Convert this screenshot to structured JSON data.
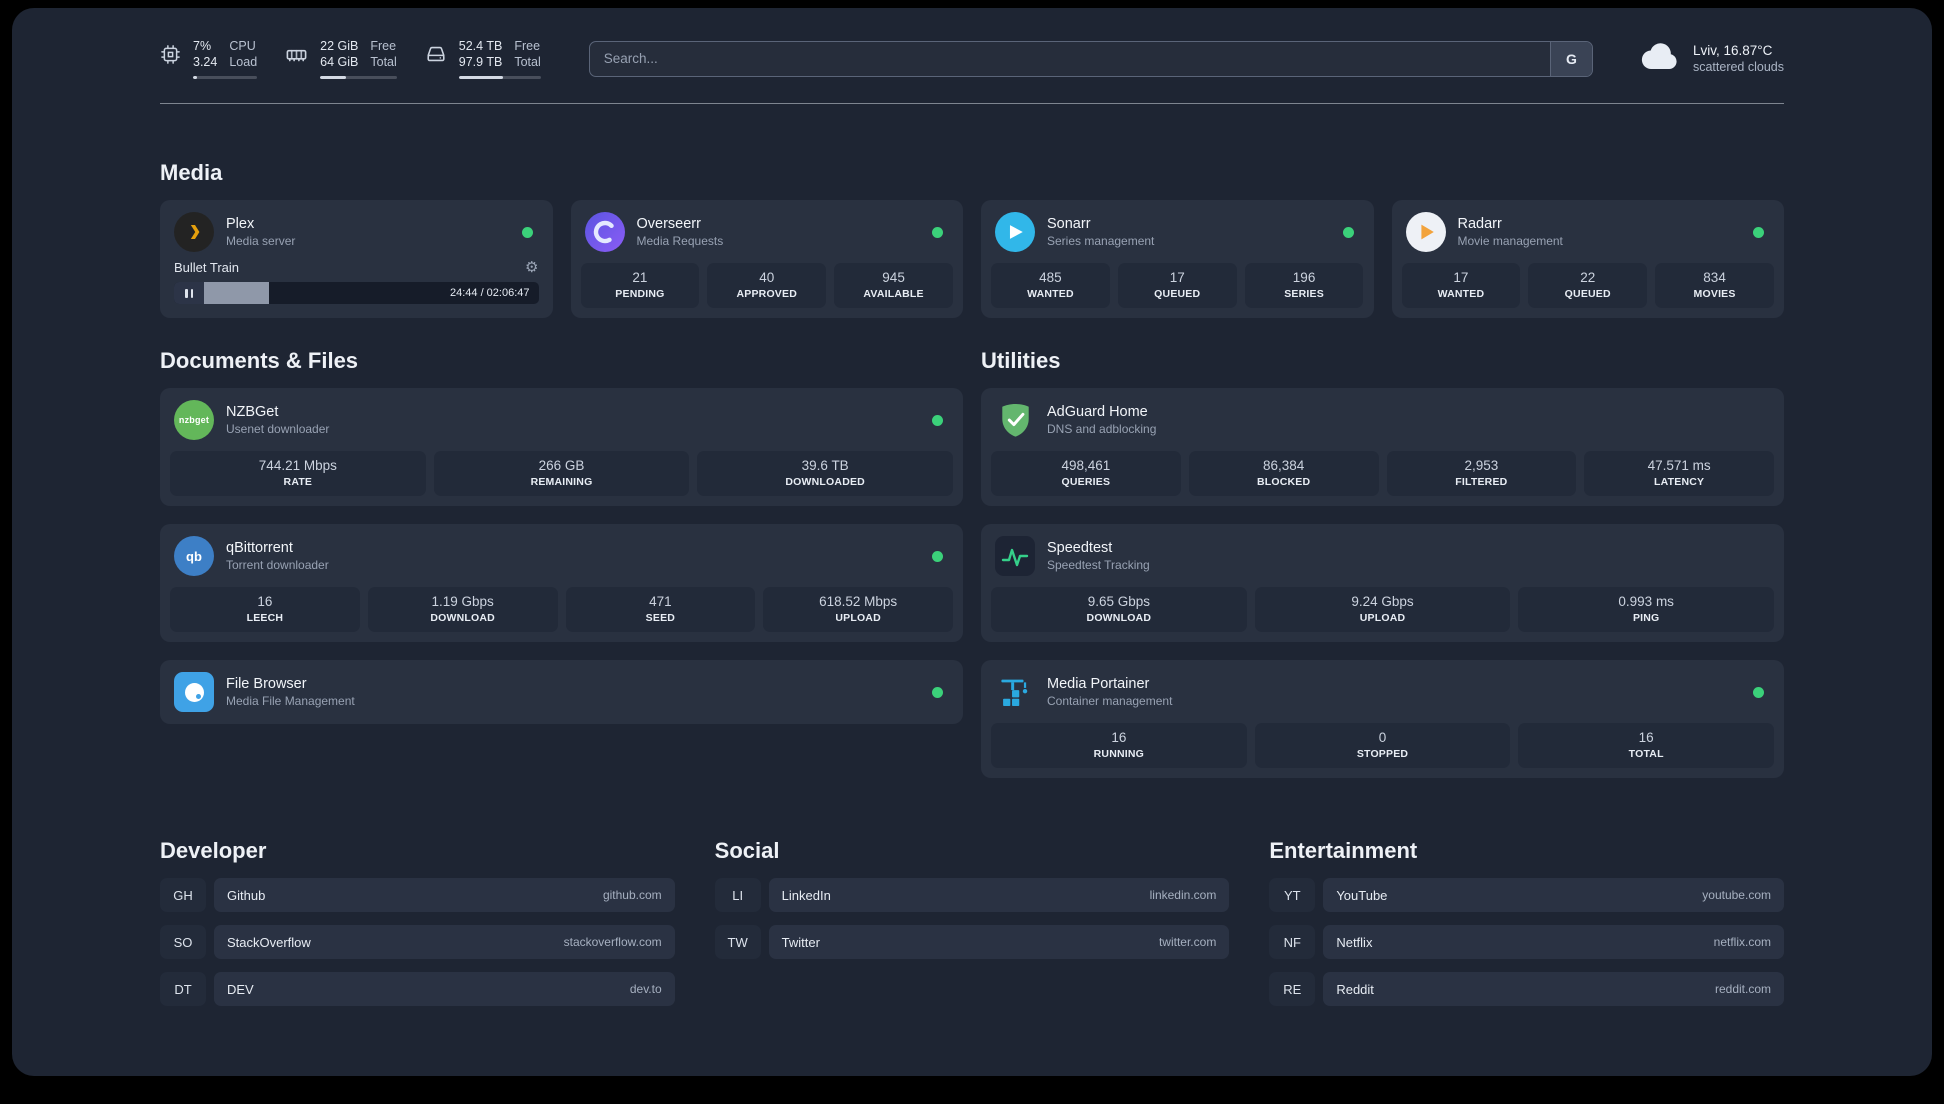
{
  "topbar": {
    "cpu": {
      "icon": "cpu-icon",
      "value_top": "7%",
      "label_top": "CPU",
      "value_bottom": "3.24",
      "label_bottom": "Load",
      "bar_percent": 7
    },
    "memory": {
      "icon": "memory-icon",
      "value_top": "22 GiB",
      "label_top": "Free",
      "value_bottom": "64 GiB",
      "label_bottom": "Total",
      "bar_percent": 34
    },
    "disk": {
      "icon": "disk-icon",
      "value_top": "52.4 TB",
      "label_top": "Free",
      "value_bottom": "97.9 TB",
      "label_bottom": "Total",
      "bar_percent": 54
    },
    "search": {
      "placeholder": "Search...",
      "provider_label": "G"
    },
    "weather": {
      "icon": "cloud-icon",
      "location": "Lviv, 16.87°C",
      "condition": "scattered clouds"
    }
  },
  "colors": {
    "status_online": "#3bd17a"
  },
  "sections": {
    "media": {
      "title": "Media",
      "cards": [
        {
          "name": "Plex",
          "description": "Media server",
          "icon": "plex-icon",
          "online": true,
          "player": {
            "title": "Bullet Train",
            "settings_icon": "gear-icon",
            "state_icon": "pause-icon",
            "time": "24:44 / 02:06:47",
            "progress_percent": 19.5
          }
        },
        {
          "name": "Overseerr",
          "description": "Media Requests",
          "icon": "overseerr-icon",
          "online": true,
          "stats": [
            {
              "value": "21",
              "label": "PENDING"
            },
            {
              "value": "40",
              "label": "APPROVED"
            },
            {
              "value": "945",
              "label": "AVAILABLE"
            }
          ]
        },
        {
          "name": "Sonarr",
          "description": "Series management",
          "icon": "sonarr-icon",
          "online": true,
          "stats": [
            {
              "value": "485",
              "label": "WANTED"
            },
            {
              "value": "17",
              "label": "QUEUED"
            },
            {
              "value": "196",
              "label": "SERIES"
            }
          ]
        },
        {
          "name": "Radarr",
          "description": "Movie management",
          "icon": "radarr-icon",
          "online": true,
          "stats": [
            {
              "value": "17",
              "label": "WANTED"
            },
            {
              "value": "22",
              "label": "QUEUED"
            },
            {
              "value": "834",
              "label": "MOVIES"
            }
          ]
        }
      ]
    },
    "documents": {
      "title": "Documents & Files",
      "cards": [
        {
          "name": "NZBGet",
          "description": "Usenet downloader",
          "icon": "nzbget-icon",
          "online": true,
          "stats": [
            {
              "value": "744.21 Mbps",
              "label": "RATE"
            },
            {
              "value": "266 GB",
              "label": "REMAINING"
            },
            {
              "value": "39.6 TB",
              "label": "DOWNLOADED"
            }
          ]
        },
        {
          "name": "qBittorrent",
          "description": "Torrent downloader",
          "icon": "qbittorrent-icon",
          "online": true,
          "stats": [
            {
              "value": "16",
              "label": "LEECH"
            },
            {
              "value": "1.19 Gbps",
              "label": "DOWNLOAD"
            },
            {
              "value": "471",
              "label": "SEED"
            },
            {
              "value": "618.52 Mbps",
              "label": "UPLOAD"
            }
          ]
        },
        {
          "name": "File Browser",
          "description": "Media File Management",
          "icon": "filebrowser-icon",
          "online": true
        }
      ]
    },
    "utilities": {
      "title": "Utilities",
      "cards": [
        {
          "name": "AdGuard Home",
          "description": "DNS and adblocking",
          "icon": "adguard-icon",
          "stats": [
            {
              "value": "498,461",
              "label": "QUERIES"
            },
            {
              "value": "86,384",
              "label": "BLOCKED"
            },
            {
              "value": "2,953",
              "label": "FILTERED"
            },
            {
              "value": "47.571 ms",
              "label": "LATENCY"
            }
          ]
        },
        {
          "name": "Speedtest",
          "description": "Speedtest Tracking",
          "icon": "speedtest-icon",
          "stats": [
            {
              "value": "9.65 Gbps",
              "label": "DOWNLOAD"
            },
            {
              "value": "9.24 Gbps",
              "label": "UPLOAD"
            },
            {
              "value": "0.993 ms",
              "label": "PING"
            }
          ]
        },
        {
          "name": "Media Portainer",
          "description": "Container management",
          "icon": "portainer-icon",
          "online": true,
          "stats": [
            {
              "value": "16",
              "label": "RUNNING"
            },
            {
              "value": "0",
              "label": "STOPPED"
            },
            {
              "value": "16",
              "label": "TOTAL"
            }
          ]
        }
      ]
    }
  },
  "bookmarks": [
    {
      "title": "Developer",
      "items": [
        {
          "abbr": "GH",
          "name": "Github",
          "url": "github.com"
        },
        {
          "abbr": "SO",
          "name": "StackOverflow",
          "url": "stackoverflow.com"
        },
        {
          "abbr": "DT",
          "name": "DEV",
          "url": "dev.to"
        }
      ]
    },
    {
      "title": "Social",
      "items": [
        {
          "abbr": "LI",
          "name": "LinkedIn",
          "url": "linkedin.com"
        },
        {
          "abbr": "TW",
          "name": "Twitter",
          "url": "twitter.com"
        }
      ]
    },
    {
      "title": "Entertainment",
      "items": [
        {
          "abbr": "YT",
          "name": "YouTube",
          "url": "youtube.com"
        },
        {
          "abbr": "NF",
          "name": "Netflix",
          "url": "netflix.com"
        },
        {
          "abbr": "RE",
          "name": "Reddit",
          "url": "reddit.com"
        }
      ]
    }
  ]
}
